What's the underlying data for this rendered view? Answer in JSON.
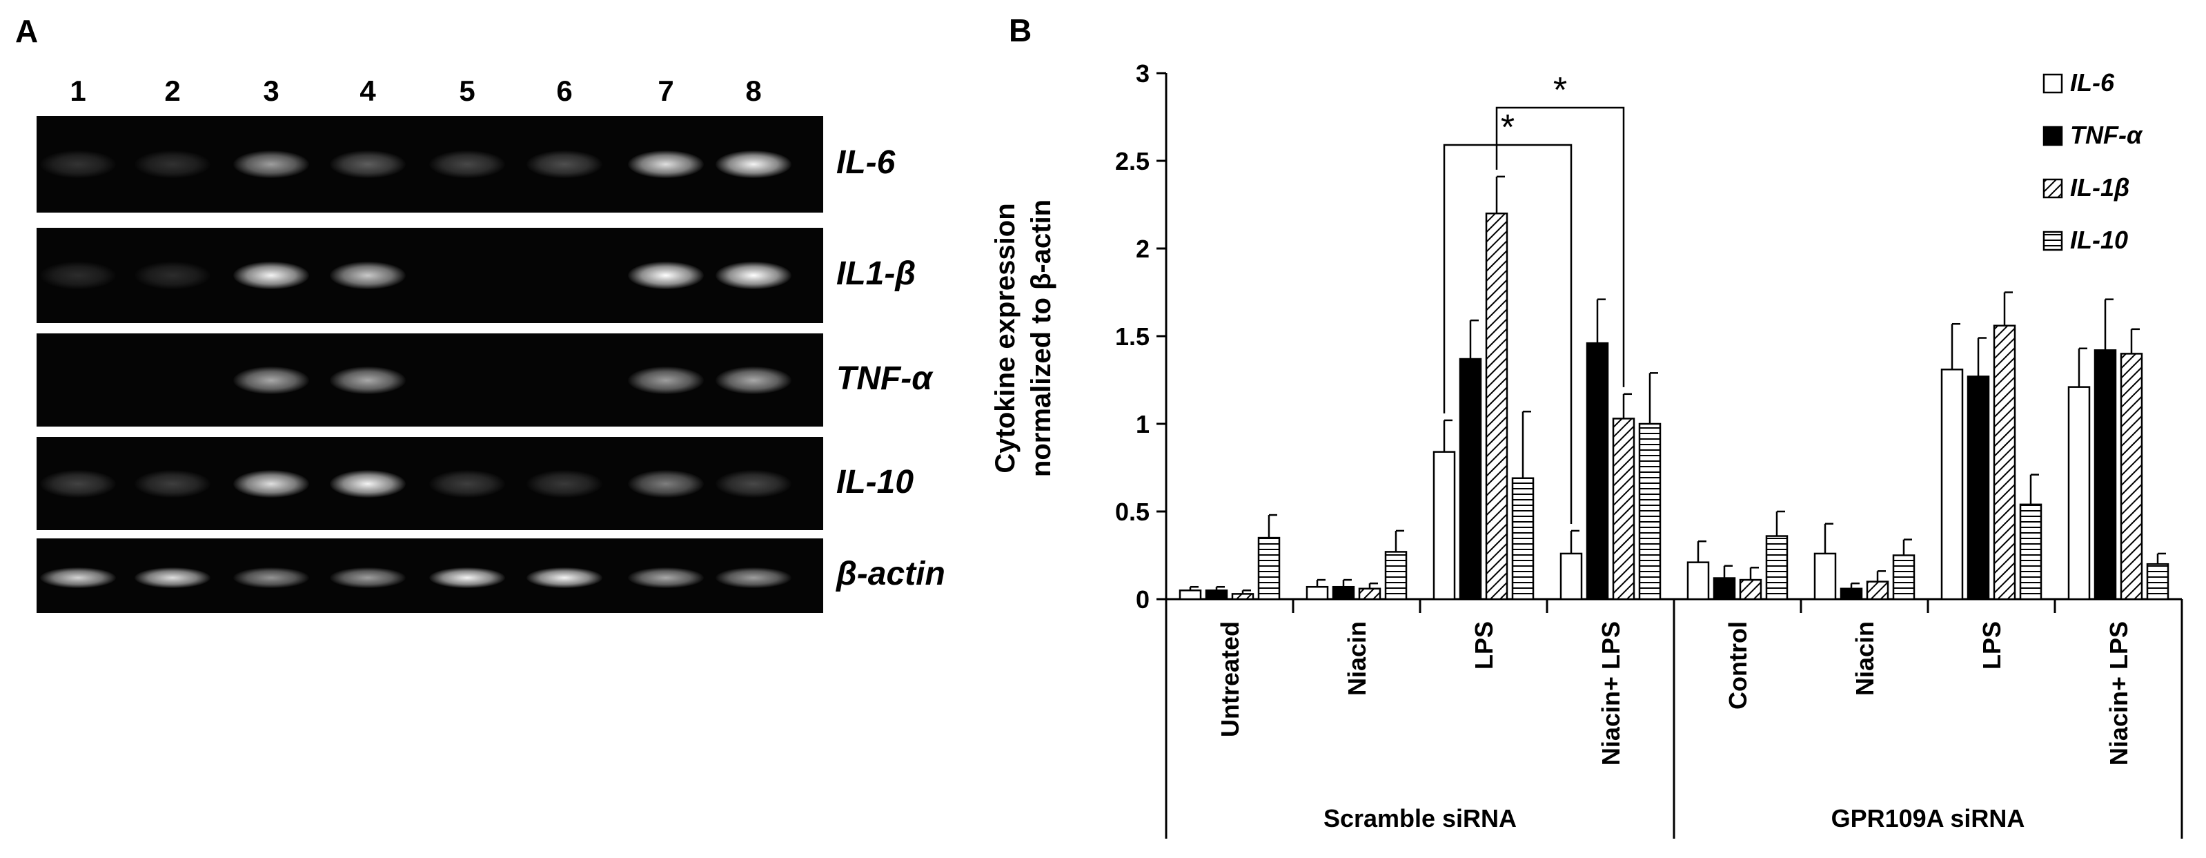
{
  "panel_a": {
    "label": "A",
    "lanes": [
      "1",
      "2",
      "3",
      "4",
      "5",
      "6",
      "7",
      "8"
    ],
    "rows": [
      {
        "label": "IL-6",
        "intensity": [
          0.05,
          0.04,
          0.55,
          0.25,
          0.15,
          0.18,
          0.85,
          0.95
        ]
      },
      {
        "label": "IL1-β",
        "intensity": [
          0.02,
          0.02,
          0.95,
          0.75,
          0.0,
          0.0,
          1.0,
          1.0
        ]
      },
      {
        "label": "TNF-α",
        "intensity": [
          0.0,
          0.0,
          0.6,
          0.6,
          0.0,
          0.0,
          0.55,
          0.6
        ]
      },
      {
        "label": "IL-10",
        "intensity": [
          0.12,
          0.1,
          0.85,
          0.95,
          0.1,
          0.08,
          0.4,
          0.15
        ]
      },
      {
        "label": "β-actin",
        "intensity": [
          0.8,
          0.85,
          0.5,
          0.55,
          0.95,
          0.95,
          0.6,
          0.55
        ]
      }
    ]
  },
  "chart_data": {
    "type": "bar",
    "panel_label": "B",
    "ylabel_line1": "Cytokine expression",
    "ylabel_line2": "normalized to β-actin",
    "ylim": [
      0,
      3
    ],
    "yticks": [
      "0",
      "0.5",
      "1",
      "1.5",
      "2",
      "2.5",
      "3"
    ],
    "categories": [
      "Untreated",
      "Niacin",
      "LPS",
      "Niacin+ LPS",
      "Control",
      "Niacin",
      "LPS",
      "Niacin+ LPS"
    ],
    "groups": [
      {
        "label": "Scramble siRNA",
        "categories": [
          0,
          1,
          2,
          3
        ]
      },
      {
        "label": "GPR109A siRNA",
        "categories": [
          4,
          5,
          6,
          7
        ]
      }
    ],
    "series": [
      {
        "name": "IL-6",
        "fill": "white",
        "values": [
          0.05,
          0.07,
          0.84,
          0.26,
          0.21,
          0.26,
          1.31,
          1.21
        ],
        "errors": [
          0.02,
          0.04,
          0.18,
          0.13,
          0.12,
          0.17,
          0.26,
          0.22
        ]
      },
      {
        "name": "TNF-α",
        "fill": "black",
        "values": [
          0.05,
          0.07,
          1.37,
          1.46,
          0.12,
          0.06,
          1.27,
          1.42
        ],
        "errors": [
          0.02,
          0.04,
          0.22,
          0.25,
          0.07,
          0.03,
          0.22,
          0.29
        ]
      },
      {
        "name": "IL-1β",
        "fill": "diagonal",
        "values": [
          0.03,
          0.06,
          2.2,
          1.03,
          0.11,
          0.1,
          1.56,
          1.4
        ],
        "errors": [
          0.02,
          0.03,
          0.21,
          0.14,
          0.07,
          0.06,
          0.19,
          0.14
        ]
      },
      {
        "name": "IL-10",
        "fill": "horizontal",
        "values": [
          0.35,
          0.27,
          0.69,
          1.0,
          0.36,
          0.25,
          0.54,
          0.2
        ],
        "errors": [
          0.13,
          0.12,
          0.38,
          0.29,
          0.14,
          0.09,
          0.17,
          0.06
        ]
      }
    ],
    "significance": [
      {
        "label": "*",
        "from_category": 2,
        "from_series": 0,
        "to_category": 3,
        "to_series": 0
      },
      {
        "label": "*",
        "from_category": 2,
        "from_series": 2,
        "to_category": 3,
        "to_series": 2
      }
    ],
    "legend_position": "top-right",
    "grid": false,
    "colors": {
      "axis": "#000000",
      "bar_stroke": "#000000"
    }
  }
}
